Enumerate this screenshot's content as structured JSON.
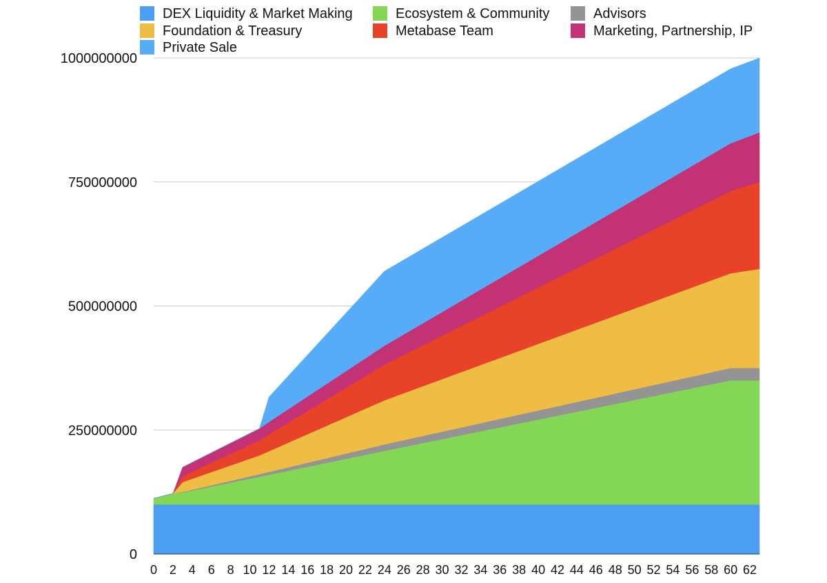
{
  "chart_data": {
    "type": "area",
    "stacked": true,
    "title": "",
    "xlabel": "",
    "ylabel": "",
    "xlim": [
      0,
      63
    ],
    "ylim": [
      0,
      1000000000
    ],
    "grid": true,
    "legend_position": "top",
    "x_ticks": [
      0,
      2,
      4,
      6,
      8,
      10,
      12,
      14,
      16,
      18,
      20,
      22,
      24,
      26,
      28,
      30,
      32,
      34,
      36,
      38,
      40,
      42,
      44,
      46,
      48,
      50,
      52,
      54,
      56,
      58,
      60,
      62
    ],
    "y_ticks": [
      0,
      250000000,
      500000000,
      750000000,
      1000000000
    ],
    "y_tick_labels": [
      "0",
      "250000000",
      "500000000",
      "750000000",
      "1000000000"
    ],
    "x": [
      0,
      2,
      3,
      11,
      12,
      24,
      60,
      63
    ],
    "series": [
      {
        "name": "DEX Liquidity & Market Making",
        "color": "#4a9ff5",
        "values": [
          100000000,
          100000000,
          100000000,
          100000000,
          100000000,
          100000000,
          100000000,
          100000000
        ]
      },
      {
        "name": "Ecosystem & Community",
        "color": "#84d655",
        "values": [
          12000000,
          22000000,
          24000000,
          56000000,
          60000000,
          108000000,
          250000000,
          250000000
        ]
      },
      {
        "name": "Advisors",
        "color": "#949494",
        "values": [
          0,
          0,
          1000000,
          5000000,
          5500000,
          13000000,
          25000000,
          25000000
        ]
      },
      {
        "name": "Foundation & Treasury",
        "color": "#efbc44",
        "values": [
          0,
          0,
          20000000,
          38000000,
          42000000,
          89000000,
          191000000,
          200000000
        ]
      },
      {
        "name": "Metabase Team",
        "color": "#e84229",
        "values": [
          0,
          0,
          12000000,
          30000000,
          34000000,
          72000000,
          166000000,
          175000000
        ]
      },
      {
        "name": "Marketing, Partnership, IP",
        "color": "#c43276",
        "values": [
          0,
          0,
          18000000,
          24000000,
          25000000,
          38000000,
          96000000,
          100000000
        ]
      },
      {
        "name": "Private Sale",
        "color": "#56acf7",
        "values": [
          0,
          0,
          0,
          0,
          50000000,
          150000000,
          150000000,
          150000000
        ]
      }
    ],
    "legend_order": [
      "DEX Liquidity & Market Making",
      "Ecosystem & Community",
      "Advisors",
      "Foundation & Treasury",
      "Metabase Team",
      "Marketing, Partnership, IP",
      "Private Sale"
    ]
  }
}
